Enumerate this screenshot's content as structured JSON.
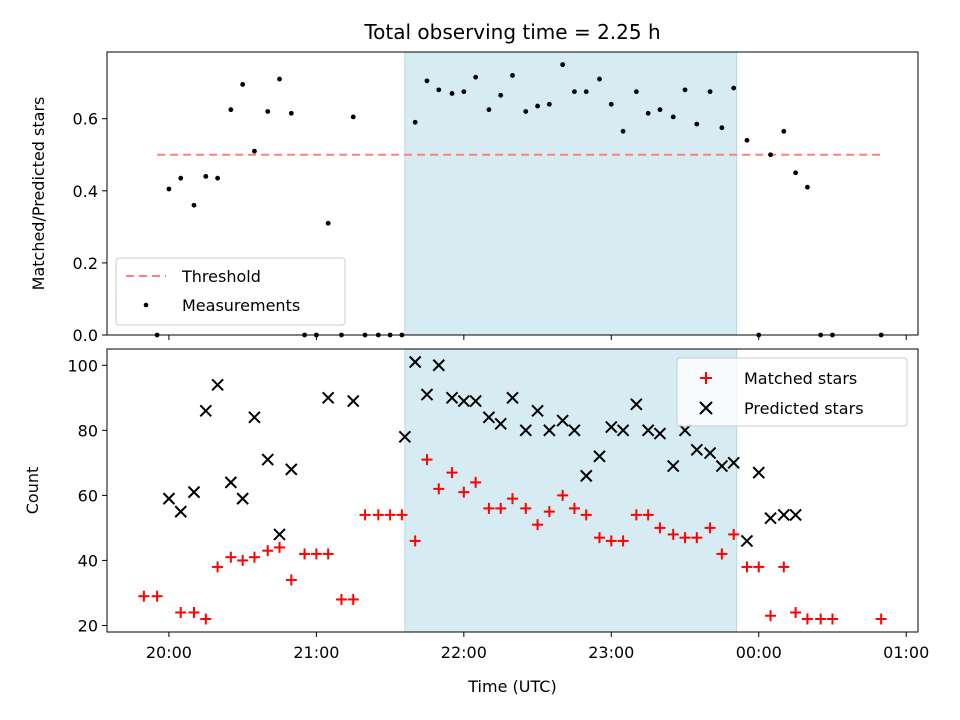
{
  "chart_data": [
    {
      "type": "scatter",
      "title": "Total observing time = 2.25 h",
      "xlabel": "",
      "ylabel": "Matched/Predicted stars",
      "x_unit": "hours UTC (24+ = after midnight)",
      "xlim": [
        19.58,
        25.08
      ],
      "ylim": [
        0,
        0.785
      ],
      "yticks": [
        0.0,
        0.2,
        0.4,
        0.6
      ],
      "ytick_labels": [
        "0.0",
        "0.2",
        "0.4",
        "0.6"
      ],
      "shaded_region": [
        21.6,
        23.85
      ],
      "shade_color": "#add8e6",
      "legend": {
        "position": "lower-left",
        "entries": [
          "Threshold",
          "Measurements"
        ]
      },
      "series": [
        {
          "name": "Threshold",
          "kind": "dashed-line",
          "color": "#ff7f7f",
          "x": [
            19.92,
            24.83
          ],
          "y": [
            0.5,
            0.5
          ]
        },
        {
          "name": "Measurements",
          "kind": "points",
          "color": "#000000",
          "x": [
            19.92,
            20.0,
            20.08,
            20.17,
            20.25,
            20.33,
            20.42,
            20.5,
            20.58,
            20.67,
            20.75,
            20.83,
            20.92,
            21.0,
            21.08,
            21.17,
            21.25,
            21.33,
            21.42,
            21.5,
            21.58,
            21.67,
            21.75,
            21.83,
            21.92,
            22.0,
            22.08,
            22.17,
            22.25,
            22.33,
            22.42,
            22.5,
            22.58,
            22.67,
            22.75,
            22.83,
            22.92,
            23.0,
            23.08,
            23.17,
            23.25,
            23.33,
            23.42,
            23.5,
            23.58,
            23.67,
            23.75,
            23.83,
            23.92,
            24.0,
            24.08,
            24.17,
            24.25,
            24.33,
            24.42,
            24.5,
            24.83
          ],
          "y": [
            0.0,
            0.405,
            0.435,
            0.36,
            0.44,
            0.435,
            0.625,
            0.695,
            0.51,
            0.62,
            0.71,
            0.615,
            0.0,
            0.0,
            0.31,
            0.0,
            0.605,
            0.0,
            0.0,
            0.0,
            0.0,
            0.59,
            0.705,
            0.68,
            0.67,
            0.675,
            0.715,
            0.625,
            0.665,
            0.72,
            0.62,
            0.635,
            0.64,
            0.75,
            0.675,
            0.675,
            0.71,
            0.64,
            0.565,
            0.675,
            0.615,
            0.625,
            0.605,
            0.68,
            0.585,
            0.675,
            0.575,
            0.685,
            0.54,
            0.0,
            0.5,
            0.565,
            0.45,
            0.41,
            0.0,
            0.0,
            0.0
          ]
        }
      ]
    },
    {
      "type": "scatter",
      "title": "",
      "xlabel": "Time (UTC)",
      "ylabel": "Count",
      "x_unit": "hours UTC (24+ = after midnight)",
      "xlim": [
        19.58,
        25.08
      ],
      "ylim": [
        18,
        105
      ],
      "yticks": [
        20,
        40,
        60,
        80,
        100
      ],
      "ytick_labels": [
        "20",
        "40",
        "60",
        "80",
        "100"
      ],
      "xticks": [
        20,
        21,
        22,
        23,
        24,
        25
      ],
      "xtick_labels": [
        "20:00",
        "21:00",
        "22:00",
        "23:00",
        "00:00",
        "01:00"
      ],
      "shaded_region": [
        21.6,
        23.85
      ],
      "shade_color": "#add8e6",
      "legend": {
        "position": "top-right",
        "entries": [
          "Matched stars",
          "Predicted stars"
        ]
      },
      "series": [
        {
          "name": "Matched stars",
          "marker": "plus",
          "color": "#ff0000",
          "x": [
            19.83,
            19.92,
            20.08,
            20.17,
            20.25,
            20.33,
            20.42,
            20.5,
            20.58,
            20.67,
            20.75,
            20.83,
            20.92,
            21.0,
            21.08,
            21.17,
            21.25,
            21.33,
            21.42,
            21.5,
            21.58,
            21.67,
            21.75,
            21.83,
            21.92,
            22.0,
            22.08,
            22.17,
            22.25,
            22.33,
            22.42,
            22.5,
            22.58,
            22.67,
            22.75,
            22.83,
            22.92,
            23.0,
            23.08,
            23.17,
            23.25,
            23.33,
            23.42,
            23.5,
            23.58,
            23.67,
            23.75,
            23.83,
            23.92,
            24.0,
            24.08,
            24.17,
            24.25,
            24.33,
            24.42,
            24.5,
            24.83
          ],
          "y": [
            29,
            29,
            24,
            24,
            22,
            38,
            41,
            40,
            41,
            43,
            44,
            34,
            42,
            42,
            42,
            28,
            28,
            54,
            54,
            54,
            54,
            46,
            71,
            62,
            67,
            61,
            64,
            56,
            56,
            59,
            56,
            51,
            55,
            60,
            56,
            54,
            47,
            46,
            46,
            54,
            54,
            50,
            48,
            47,
            47,
            50,
            42,
            48,
            38,
            38,
            23,
            38,
            24,
            22,
            22,
            22,
            22
          ]
        },
        {
          "name": "Predicted stars",
          "marker": "x",
          "color": "#000000",
          "x": [
            20.0,
            20.08,
            20.17,
            20.25,
            20.33,
            20.42,
            20.5,
            20.58,
            20.67,
            20.75,
            20.83,
            21.08,
            21.25,
            21.6,
            21.67,
            21.75,
            21.83,
            21.92,
            22.0,
            22.08,
            22.17,
            22.25,
            22.33,
            22.42,
            22.5,
            22.58,
            22.67,
            22.75,
            22.83,
            22.92,
            23.0,
            23.08,
            23.17,
            23.25,
            23.33,
            23.42,
            23.5,
            23.58,
            23.67,
            23.75,
            23.83,
            23.92,
            24.0,
            24.08,
            24.17,
            24.25
          ],
          "y": [
            59,
            55,
            61,
            86,
            94,
            64,
            59,
            84,
            71,
            48,
            68,
            90,
            89,
            78,
            101,
            91,
            100,
            90,
            89,
            89,
            84,
            82,
            90,
            80,
            86,
            80,
            83,
            80,
            66,
            72,
            81,
            80,
            88,
            80,
            79,
            69,
            80,
            74,
            73,
            69,
            70,
            46,
            67,
            53,
            54,
            54
          ]
        }
      ]
    }
  ]
}
